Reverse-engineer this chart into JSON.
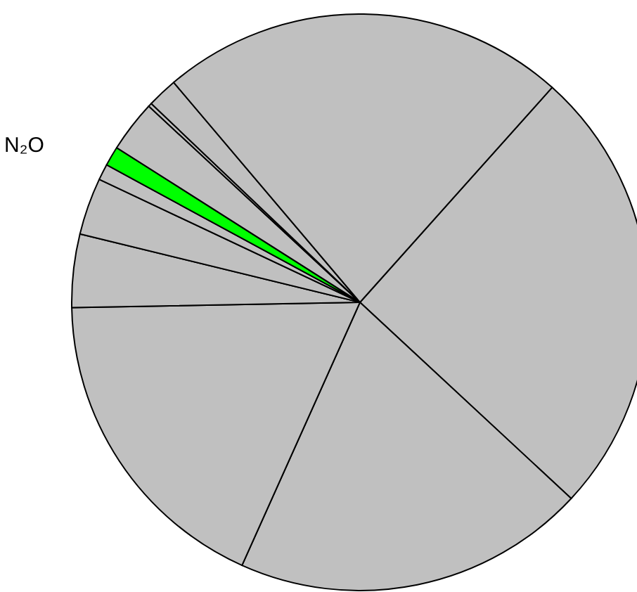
{
  "chart_data": {
    "type": "pie",
    "categories": [
      null,
      null,
      null,
      null,
      null,
      null,
      "N₂O",
      null,
      null,
      null,
      null
    ],
    "values": [
      25.3,
      19.8,
      18.0,
      4.1,
      3.2,
      0.9,
      1.1,
      2.9,
      0.2,
      1.7,
      22.8
    ],
    "colors": [
      "#c0c0c0",
      "#c0c0c0",
      "#c0c0c0",
      "#c0c0c0",
      "#c0c0c0",
      "#c0c0c0",
      "#00ff00",
      "#c0c0c0",
      "#c0c0c0",
      "#c0c0c0",
      "#c0c0c0"
    ],
    "legend": false
  }
}
